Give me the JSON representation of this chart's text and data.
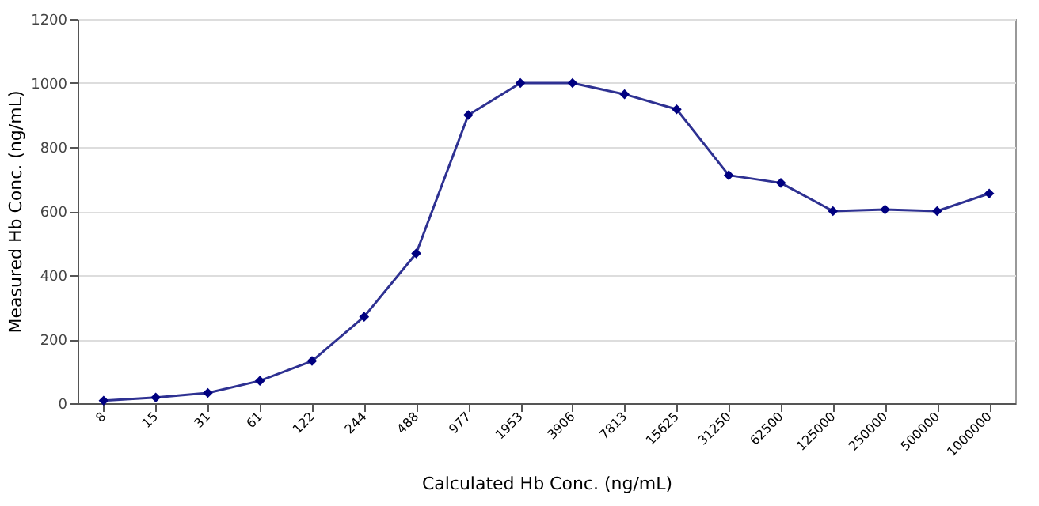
{
  "chart_data": {
    "type": "line",
    "xlabel": "Calculated Hb Conc. (ng/mL)",
    "ylabel": "Measured Hb Conc. (ng/mL)",
    "categories": [
      "8",
      "15",
      "31",
      "61",
      "122",
      "244",
      "488",
      "977",
      "1953",
      "3906",
      "7813",
      "15625",
      "31250",
      "62500",
      "125000",
      "250000",
      "500000",
      "1000000"
    ],
    "series": [
      {
        "color": "#2e3192",
        "values": [
          8,
          18,
          32,
          70,
          132,
          270,
          468,
          900,
          1000,
          1000,
          965,
          918,
          712,
          688,
          600,
          605,
          600,
          655
        ]
      }
    ],
    "ylim": [
      0,
      1200
    ],
    "yticks": [
      0,
      200,
      400,
      600,
      800,
      1000,
      1200
    ],
    "grid": "y",
    "marker": "diamond",
    "line_style": "solid"
  }
}
